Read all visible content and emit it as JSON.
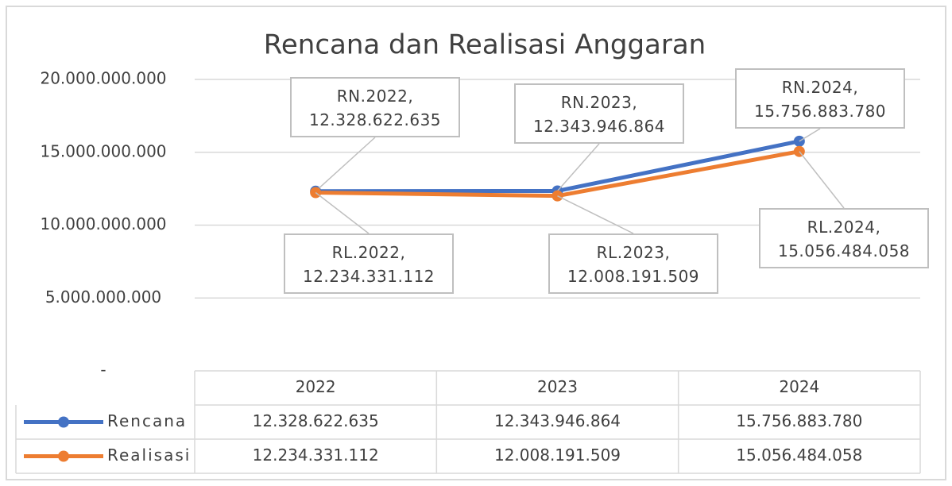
{
  "chart_data": {
    "type": "line",
    "title": "Rencana dan Realisasi Anggaran",
    "categories": [
      "2022",
      "2023",
      "2024"
    ],
    "series": [
      {
        "name": "Rencana",
        "color": "#4472c4",
        "values": [
          12328622635,
          12343946864,
          15756883780
        ],
        "value_labels": [
          "RN.2022, 12.328.622.635",
          "RN.2023, 12.343.946.864",
          "RN.2024, 15.756.883.780"
        ],
        "table_labels": [
          "12.328.622.635",
          "12.343.946.864",
          "15.756.883.780"
        ]
      },
      {
        "name": "Realisasi",
        "color": "#ed7d31",
        "values": [
          12234331112,
          12008191509,
          15056484058
        ],
        "value_labels": [
          "RL.2022, 12.234.331.112",
          "RL.2023, 12.008.191.509",
          "RL.2024, 15.056.484.058"
        ],
        "table_labels": [
          "12.234.331.112",
          "12.008.191.509",
          "15.056.484.058"
        ]
      }
    ],
    "ylim": [
      0,
      20000000000
    ],
    "yticks": [
      {
        "value": 0,
        "label": "-"
      },
      {
        "value": 5000000000,
        "label": "5.000.000.000"
      },
      {
        "value": 10000000000,
        "label": "10.000.000.000"
      },
      {
        "value": 15000000000,
        "label": "15.000.000.000"
      },
      {
        "value": 20000000000,
        "label": "20.000.000.000"
      }
    ],
    "grid": true,
    "data_table": true
  }
}
